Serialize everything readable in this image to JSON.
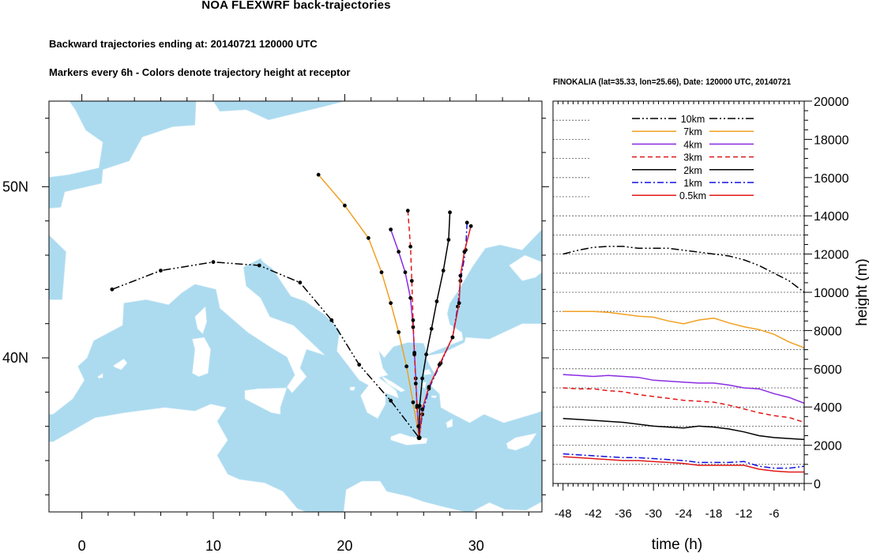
{
  "header": {
    "title": "NOA FLEXWRF back-trajectories",
    "subtitle1": "Backward trajectories ending at: 20140721  120000 UTC",
    "subtitle2": "Markers every 6h - Colors denote trajectory height at receptor"
  },
  "colors": {
    "sea": "#acdbf0",
    "land": "#ffffff",
    "10km": "#000000",
    "7km": "#f0a020",
    "4km": "#8a2be2",
    "3km": "#e01818",
    "2km": "#000000",
    "1km": "#1010e0",
    "0.5km": "#e01818"
  },
  "chart_data": [
    {
      "type": "map-trajectories",
      "xlabel": "",
      "ylabel": "",
      "xlim": [
        -2.5,
        35
      ],
      "ylim": [
        31,
        55
      ],
      "x_ticks": [
        "0",
        "10",
        "20",
        "30"
      ],
      "y_ticks": [
        "40N",
        "50N"
      ],
      "receptor": {
        "lon": 25.66,
        "lat": 35.33
      },
      "trajectories": [
        {
          "name": "10km",
          "style": "dash-dot-dot",
          "points": [
            [
              2.3,
              44.0
            ],
            [
              6.0,
              45.1
            ],
            [
              10.0,
              45.6
            ],
            [
              13.5,
              45.4
            ],
            [
              16.6,
              44.4
            ],
            [
              19.0,
              42.2
            ],
            [
              21.1,
              39.6
            ],
            [
              23.5,
              37.5
            ],
            [
              25.66,
              35.33
            ]
          ]
        },
        {
          "name": "7km",
          "style": "solid",
          "points": [
            [
              18.0,
              50.7
            ],
            [
              20.0,
              48.9
            ],
            [
              21.8,
              47.0
            ],
            [
              22.8,
              45.0
            ],
            [
              23.5,
              43.2
            ],
            [
              24.1,
              41.5
            ],
            [
              24.7,
              39.5
            ],
            [
              25.2,
              37.4
            ],
            [
              25.66,
              35.33
            ]
          ]
        },
        {
          "name": "4km",
          "style": "solid",
          "points": [
            [
              23.5,
              47.5
            ],
            [
              24.1,
              46.2
            ],
            [
              24.6,
              45.0
            ],
            [
              25.0,
              43.5
            ],
            [
              25.2,
              41.8
            ],
            [
              25.3,
              40.3
            ],
            [
              25.4,
              38.8
            ],
            [
              25.5,
              37.1
            ],
            [
              25.66,
              35.33
            ]
          ]
        },
        {
          "name": "3km",
          "style": "dash",
          "points": [
            [
              24.8,
              48.6
            ],
            [
              25.0,
              46.5
            ],
            [
              25.1,
              44.5
            ],
            [
              25.2,
              42.2
            ],
            [
              25.3,
              40.2
            ],
            [
              25.4,
              38.5
            ],
            [
              25.5,
              37.2
            ],
            [
              25.6,
              36.0
            ],
            [
              25.66,
              35.33
            ]
          ]
        },
        {
          "name": "2km",
          "style": "solid",
          "points": [
            [
              28.0,
              48.5
            ],
            [
              27.9,
              46.9
            ],
            [
              27.5,
              45.1
            ],
            [
              27.0,
              43.3
            ],
            [
              26.6,
              41.7
            ],
            [
              26.2,
              40.2
            ],
            [
              25.9,
              38.8
            ],
            [
              25.7,
              37.2
            ],
            [
              25.66,
              35.33
            ]
          ]
        },
        {
          "name": "1km",
          "style": "dash-dot",
          "points": [
            [
              29.3,
              47.9
            ],
            [
              29.2,
              46.3
            ],
            [
              28.8,
              44.5
            ],
            [
              28.6,
              43.0
            ],
            [
              28.2,
              41.2
            ],
            [
              27.3,
              39.7
            ],
            [
              26.4,
              38.2
            ],
            [
              25.9,
              36.7
            ],
            [
              25.66,
              35.33
            ]
          ]
        },
        {
          "name": "0.5km",
          "style": "solid",
          "points": [
            [
              29.6,
              47.7
            ],
            [
              29.1,
              46.2
            ],
            [
              28.8,
              44.8
            ],
            [
              28.7,
              43.2
            ],
            [
              28.2,
              41.2
            ],
            [
              27.2,
              39.6
            ],
            [
              26.4,
              38.3
            ],
            [
              25.9,
              37.0
            ],
            [
              25.66,
              35.33
            ]
          ]
        }
      ]
    },
    {
      "type": "line",
      "title": "FINOKALIA (lat=35.33,  lon=25.66), Date: 120000 UTC, 20140721",
      "xlabel": "time (h)",
      "ylabel": "height (m)",
      "xlim": [
        -50,
        0
      ],
      "ylim": [
        0,
        20000
      ],
      "x_ticks": [
        "-48",
        "-42",
        "-36",
        "-30",
        "-24",
        "-18",
        "-12",
        "-6"
      ],
      "y_ticks": [
        "0",
        "2000",
        "4000",
        "6000",
        "8000",
        "10000",
        "12000",
        "14000",
        "16000",
        "18000",
        "20000"
      ],
      "legend_position": "top-center",
      "series": [
        {
          "name": "10km",
          "x": [
            -48,
            -45,
            -42,
            -39,
            -36,
            -33,
            -30,
            -27,
            -24,
            -21,
            -18,
            -15,
            -12,
            -9,
            -6,
            -3,
            0
          ],
          "y": [
            12000,
            12200,
            12350,
            12400,
            12400,
            12300,
            12300,
            12300,
            12200,
            12100,
            12000,
            11900,
            11700,
            11400,
            11000,
            10600,
            10000
          ]
        },
        {
          "name": "7km",
          "x": [
            -48,
            -45,
            -42,
            -39,
            -36,
            -33,
            -30,
            -27,
            -24,
            -21,
            -18,
            -15,
            -12,
            -9,
            -6,
            -3,
            0
          ],
          "y": [
            9000,
            9000,
            9000,
            8950,
            8850,
            8750,
            8700,
            8500,
            8350,
            8550,
            8650,
            8400,
            8200,
            8050,
            7800,
            7400,
            7100
          ]
        },
        {
          "name": "4km",
          "x": [
            -48,
            -45,
            -42,
            -39,
            -36,
            -33,
            -30,
            -27,
            -24,
            -21,
            -18,
            -15,
            -12,
            -9,
            -6,
            -3,
            0
          ],
          "y": [
            5700,
            5650,
            5600,
            5650,
            5600,
            5550,
            5400,
            5350,
            5300,
            5250,
            5250,
            5150,
            5000,
            4950,
            4700,
            4500,
            4200
          ]
        },
        {
          "name": "3km",
          "x": [
            -48,
            -45,
            -42,
            -39,
            -36,
            -33,
            -30,
            -27,
            -24,
            -21,
            -18,
            -15,
            -12,
            -9,
            -6,
            -3,
            0
          ],
          "y": [
            5000,
            4950,
            4950,
            4850,
            4800,
            4650,
            4550,
            4450,
            4350,
            4300,
            4250,
            4100,
            3900,
            3700,
            3550,
            3450,
            3200
          ]
        },
        {
          "name": "2km",
          "x": [
            -48,
            -45,
            -42,
            -39,
            -36,
            -33,
            -30,
            -27,
            -24,
            -21,
            -18,
            -15,
            -12,
            -9,
            -6,
            -3,
            0
          ],
          "y": [
            3400,
            3350,
            3300,
            3250,
            3200,
            3100,
            3000,
            2950,
            2900,
            3000,
            2950,
            2850,
            2700,
            2500,
            2400,
            2350,
            2300
          ]
        },
        {
          "name": "1km",
          "x": [
            -48,
            -45,
            -42,
            -39,
            -36,
            -33,
            -30,
            -27,
            -24,
            -21,
            -18,
            -15,
            -12,
            -9,
            -6,
            -3,
            0
          ],
          "y": [
            1550,
            1500,
            1450,
            1400,
            1350,
            1350,
            1300,
            1250,
            1200,
            1100,
            1100,
            1100,
            1150,
            900,
            800,
            800,
            900
          ]
        },
        {
          "name": "0.5km",
          "x": [
            -48,
            -45,
            -42,
            -39,
            -36,
            -33,
            -30,
            -27,
            -24,
            -21,
            -18,
            -15,
            -12,
            -9,
            -6,
            -3,
            0
          ],
          "y": [
            1400,
            1350,
            1300,
            1250,
            1200,
            1200,
            1150,
            1100,
            1050,
            950,
            950,
            950,
            950,
            750,
            650,
            600,
            600
          ]
        }
      ]
    }
  ]
}
